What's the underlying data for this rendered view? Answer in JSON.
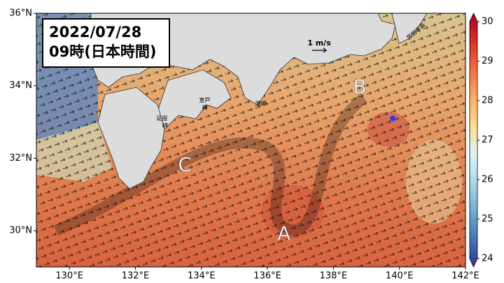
{
  "map": {
    "title_lines": [
      "2022/07/28",
      "09時(日本時間)"
    ],
    "xlim": [
      129,
      142
    ],
    "ylim": [
      29,
      36
    ],
    "xticks": [
      {
        "value": 130,
        "label": "130°E"
      },
      {
        "value": 132,
        "label": "132°E"
      },
      {
        "value": 134,
        "label": "134°E"
      },
      {
        "value": 136,
        "label": "136°E"
      },
      {
        "value": 138,
        "label": "138°E"
      },
      {
        "value": 140,
        "label": "140°E"
      },
      {
        "value": 142,
        "label": "142°E"
      }
    ],
    "yticks": [
      {
        "value": 30,
        "label": "30°N"
      },
      {
        "value": 32,
        "label": "32°N"
      },
      {
        "value": 34,
        "label": "34°N"
      },
      {
        "value": 36,
        "label": "36°N"
      }
    ],
    "colorbar": {
      "lim": [
        24,
        30
      ],
      "ticks": [
        24,
        25,
        26,
        27,
        28,
        29,
        30
      ],
      "colors": [
        "#313695",
        "#4575b4",
        "#74add1",
        "#abd9e9",
        "#e0f3f8",
        "#fee090",
        "#fdae61",
        "#f46d43",
        "#d73027",
        "#a50026"
      ]
    },
    "scale_label": "1 m/s",
    "labels": [
      {
        "text": "A",
        "lon": 136.5,
        "lat": 29.9
      },
      {
        "text": "B",
        "lon": 138.8,
        "lat": 33.95
      },
      {
        "text": "C",
        "lon": 133.5,
        "lat": 31.8
      }
    ],
    "places": [
      {
        "text": "室戸",
        "lon": 134.1,
        "lat": 33.6
      },
      {
        "text": "岬",
        "lon": 134.1,
        "lat": 33.4
      },
      {
        "text": "潮岬",
        "lon": 135.8,
        "lat": 33.5
      },
      {
        "text": "足摺",
        "lon": 132.8,
        "lat": 33.1
      },
      {
        "text": "岬",
        "lon": 132.9,
        "lat": 32.9
      },
      {
        "text": "房総半島",
        "lon": 140.5,
        "lat": 35.5
      }
    ],
    "point": {
      "lon": 139.8,
      "lat": 33.1,
      "color": "#1f3cff"
    }
  }
}
